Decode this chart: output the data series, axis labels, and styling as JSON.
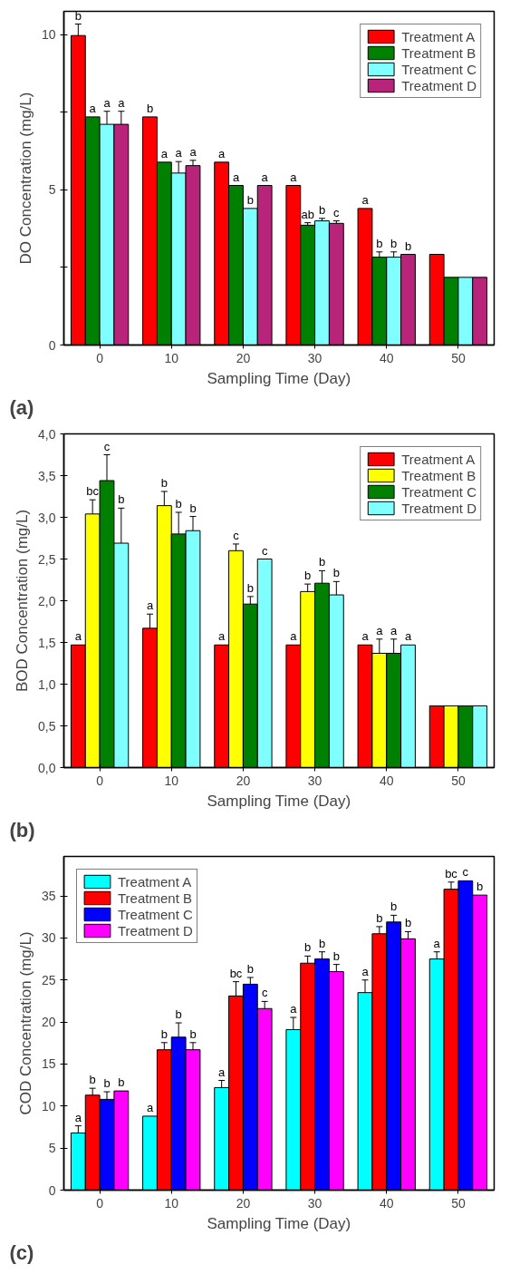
{
  "chart_data": [
    {
      "type": "bar",
      "categories": [
        "0",
        "10",
        "20",
        "30",
        "40",
        "50"
      ],
      "xlabel": "Sampling Time (Day)",
      "ylabel": "DO Concentration (mg/L)",
      "ylim": [
        0,
        10.75
      ],
      "yticks": [
        0,
        {
          "value": 2.5,
          "label": null
        },
        5,
        {
          "value": 7.5,
          "label": null
        },
        10
      ],
      "legend": "top right",
      "grid": false,
      "annotations": [
        "(a)"
      ],
      "series": [
        {
          "name": "Treatment A",
          "color": "#ff0000",
          "values": [
            9.97,
            7.35,
            5.89,
            5.14,
            4.4,
            2.92
          ],
          "errors": [
            0.37,
            null,
            null,
            null,
            null,
            null
          ],
          "value_labels": [
            "b",
            "b",
            "a",
            "a",
            "a",
            null
          ]
        },
        {
          "name": "Treatment B",
          "color": "#008000",
          "values": [
            7.35,
            5.89,
            5.14,
            3.86,
            2.83,
            2.18
          ],
          "errors": [
            null,
            null,
            null,
            0.08,
            0.17,
            null
          ],
          "value_labels": [
            "a",
            "a",
            "a",
            "ab",
            "b",
            null
          ]
        },
        {
          "name": "Treatment C",
          "color": "#80ffff",
          "values": [
            7.11,
            5.54,
            4.4,
            4.0,
            2.83,
            2.18
          ],
          "errors": [
            0.42,
            0.37,
            null,
            0.08,
            0.17,
            null
          ],
          "value_labels": [
            "a",
            "a",
            "b",
            "b",
            "b",
            null
          ]
        },
        {
          "name": "Treatment D",
          "color": "#b8247a",
          "values": [
            7.11,
            5.78,
            5.14,
            3.92,
            2.92,
            2.18
          ],
          "errors": [
            0.42,
            0.17,
            null,
            0.08,
            null,
            null
          ],
          "value_labels": [
            "a",
            "a",
            "a",
            "c",
            "b",
            null
          ]
        }
      ]
    },
    {
      "type": "bar",
      "categories": [
        "0",
        "10",
        "20",
        "30",
        "40",
        "50"
      ],
      "xlabel": "Sampling Time (Day)",
      "ylabel": "BOD Concentration (mg/L)",
      "ylim": [
        0,
        4
      ],
      "yticks": [
        {
          "value": 0,
          "label": "0,0"
        },
        {
          "value": 0.5,
          "label": "0,5"
        },
        {
          "value": 1,
          "label": "1,0"
        },
        {
          "value": 1.5,
          "label": "1,5"
        },
        {
          "value": 2,
          "label": "2,0"
        },
        {
          "value": 2.5,
          "label": "2,5"
        },
        {
          "value": 3,
          "label": "3,0"
        },
        {
          "value": 3.5,
          "label": "3,5"
        },
        {
          "value": 4,
          "label": "4,0"
        }
      ],
      "legend": "top right",
      "grid": false,
      "annotations": [
        "(b)"
      ],
      "series": [
        {
          "name": "Treatment A",
          "color": "#ff0000",
          "values": [
            1.47,
            1.67,
            1.47,
            1.47,
            1.47,
            0.74
          ],
          "errors": [
            null,
            0.17,
            null,
            null,
            null,
            null
          ],
          "value_labels": [
            "a",
            "a",
            "a",
            "a",
            "a",
            null
          ]
        },
        {
          "name": "Treatment B",
          "color": "#ffff00",
          "values": [
            3.04,
            3.14,
            2.6,
            2.11,
            1.37,
            0.74
          ],
          "errors": [
            0.17,
            0.17,
            0.08,
            0.09,
            0.17,
            null
          ],
          "value_labels": [
            "bc",
            "b",
            "c",
            "b",
            "a",
            null
          ]
        },
        {
          "name": "Treatment C",
          "color": "#008000",
          "values": [
            3.44,
            2.8,
            1.96,
            2.21,
            1.37,
            0.74
          ],
          "errors": [
            0.31,
            0.26,
            0.09,
            0.15,
            0.17,
            null
          ],
          "value_labels": [
            "c",
            "b",
            "b",
            "b",
            "a",
            null
          ]
        },
        {
          "name": "Treatment D",
          "color": "#80ffff",
          "values": [
            2.69,
            2.84,
            2.5,
            2.07,
            1.47,
            0.74
          ],
          "errors": [
            0.42,
            0.17,
            null,
            0.16,
            null,
            null
          ],
          "value_labels": [
            "b",
            "b",
            "c",
            "b",
            "a",
            null
          ]
        }
      ]
    },
    {
      "type": "bar",
      "categories": [
        "0",
        "10",
        "20",
        "30",
        "40",
        "50"
      ],
      "xlabel": "Sampling Time (Day)",
      "ylabel": "COD Concentration (mg/L)",
      "ylim": [
        0,
        39.7
      ],
      "yticks": [
        0,
        5,
        10,
        15,
        20,
        25,
        30,
        35
      ],
      "legend": "top left",
      "grid": false,
      "annotations": [
        "(c)"
      ],
      "series": [
        {
          "name": "Treatment A",
          "color": "#00ffff",
          "values": [
            6.8,
            8.8,
            12.2,
            19.1,
            23.5,
            27.5
          ],
          "errors": [
            0.85,
            null,
            0.85,
            1.45,
            1.5,
            0.85
          ],
          "value_labels": [
            "a",
            "a",
            "a",
            "a",
            "a",
            "a"
          ]
        },
        {
          "name": "Treatment B",
          "color": "#ff0000",
          "values": [
            11.3,
            16.7,
            23.1,
            27.0,
            30.5,
            35.8
          ],
          "errors": [
            0.82,
            0.85,
            1.7,
            0.85,
            0.85,
            0.85
          ],
          "value_labels": [
            "b",
            "b",
            "bc",
            "b",
            "b",
            "bc"
          ]
        },
        {
          "name": "Treatment C",
          "color": "#0000ff",
          "values": [
            10.8,
            18.2,
            24.5,
            27.5,
            31.9,
            36.8
          ],
          "errors": [
            0.9,
            1.7,
            0.8,
            0.85,
            0.8,
            null
          ],
          "value_labels": [
            "b",
            "b",
            "b",
            "b",
            "b",
            "c"
          ]
        },
        {
          "name": "Treatment D",
          "color": "#ff00ff",
          "values": [
            11.8,
            16.7,
            21.6,
            26.0,
            29.9,
            35.1
          ],
          "errors": [
            null,
            0.85,
            0.85,
            0.85,
            0.85,
            null
          ],
          "value_labels": [
            "b",
            "b",
            "c",
            "b",
            "b",
            "b"
          ]
        }
      ]
    }
  ]
}
